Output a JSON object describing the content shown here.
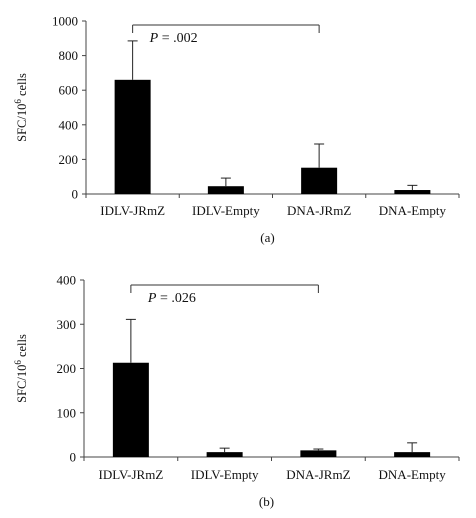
{
  "chart_data": [
    {
      "type": "bar",
      "panel_label": "(a)",
      "ylabel": "SFC/10",
      "ylabel_sup": "6",
      "ylabel_unit": "cells",
      "ylim": [
        0,
        1000
      ],
      "yticks": [
        0,
        200,
        400,
        600,
        800,
        1000
      ],
      "categories": [
        "IDLV-JRmZ",
        "IDLV-Empty",
        "DNA-JRmZ",
        "DNA-Empty"
      ],
      "values": [
        660,
        45,
        152,
        23
      ],
      "errors": [
        225,
        47,
        137,
        27
      ],
      "bar_color": "#000000",
      "annotation": {
        "italic": "P",
        "rest": " = .002",
        "from": 0,
        "to": 2
      }
    },
    {
      "type": "bar",
      "panel_label": "(b)",
      "ylabel": "SFC/10",
      "ylabel_sup": "6",
      "ylabel_unit": "cells",
      "ylim": [
        0,
        400
      ],
      "yticks": [
        0,
        100,
        200,
        300,
        400
      ],
      "categories": [
        "IDLV-JRmZ",
        "IDLV-Empty",
        "DNA-JRmZ",
        "DNA-Empty"
      ],
      "values": [
        213,
        11,
        15,
        11
      ],
      "errors": [
        98,
        9,
        3,
        21
      ],
      "bar_color": "#000000",
      "annotation": {
        "italic": "P",
        "rest": " = .026",
        "from": 0,
        "to": 2
      }
    }
  ]
}
